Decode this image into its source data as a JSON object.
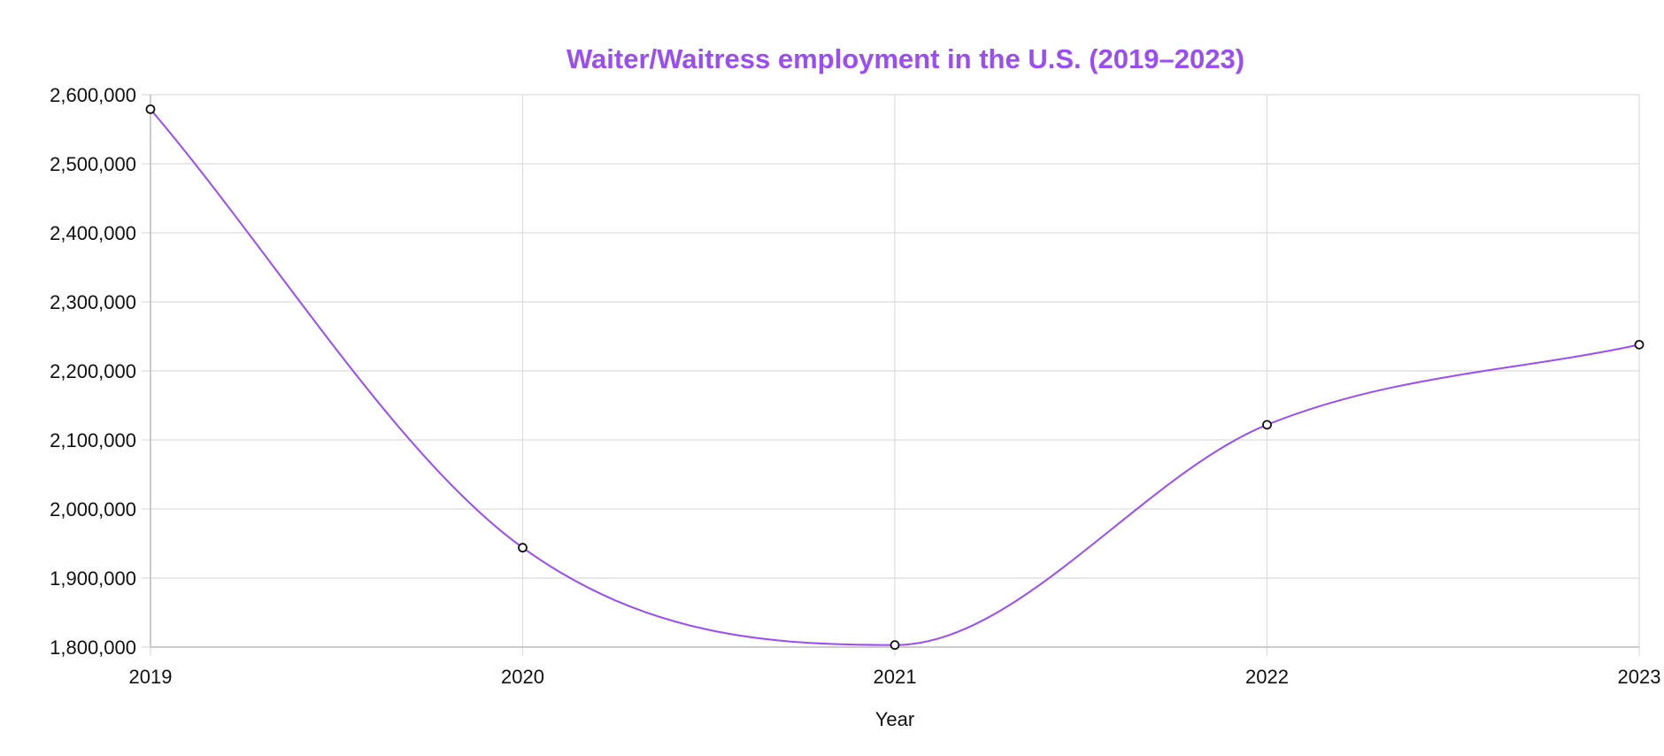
{
  "chart_data": {
    "type": "line",
    "title": "Waiter/Waitress employment in the U.S. (2019–2023)",
    "xlabel": "Year",
    "ylabel": "",
    "categories": [
      "2019",
      "2020",
      "2021",
      "2022",
      "2023"
    ],
    "series": [
      {
        "name": "Waiter/Waitress employment",
        "values": [
          2579000,
          1944000,
          1803000,
          2122000,
          2238000
        ]
      }
    ],
    "ylim": [
      1800000,
      2600000
    ],
    "yticks": [
      1800000,
      1900000,
      2000000,
      2100000,
      2200000,
      2300000,
      2400000,
      2500000,
      2600000
    ],
    "ytick_labels": [
      "1,800,000",
      "1,900,000",
      "2,000,000",
      "2,100,000",
      "2,200,000",
      "2,300,000",
      "2,400,000",
      "2,500,000",
      "2,600,000"
    ],
    "grid": true,
    "legend": "none",
    "colors": {
      "title": "#9a4df5",
      "line": "#9a4df5",
      "point_fill": "#ffffff",
      "point_stroke": "#111111"
    }
  }
}
